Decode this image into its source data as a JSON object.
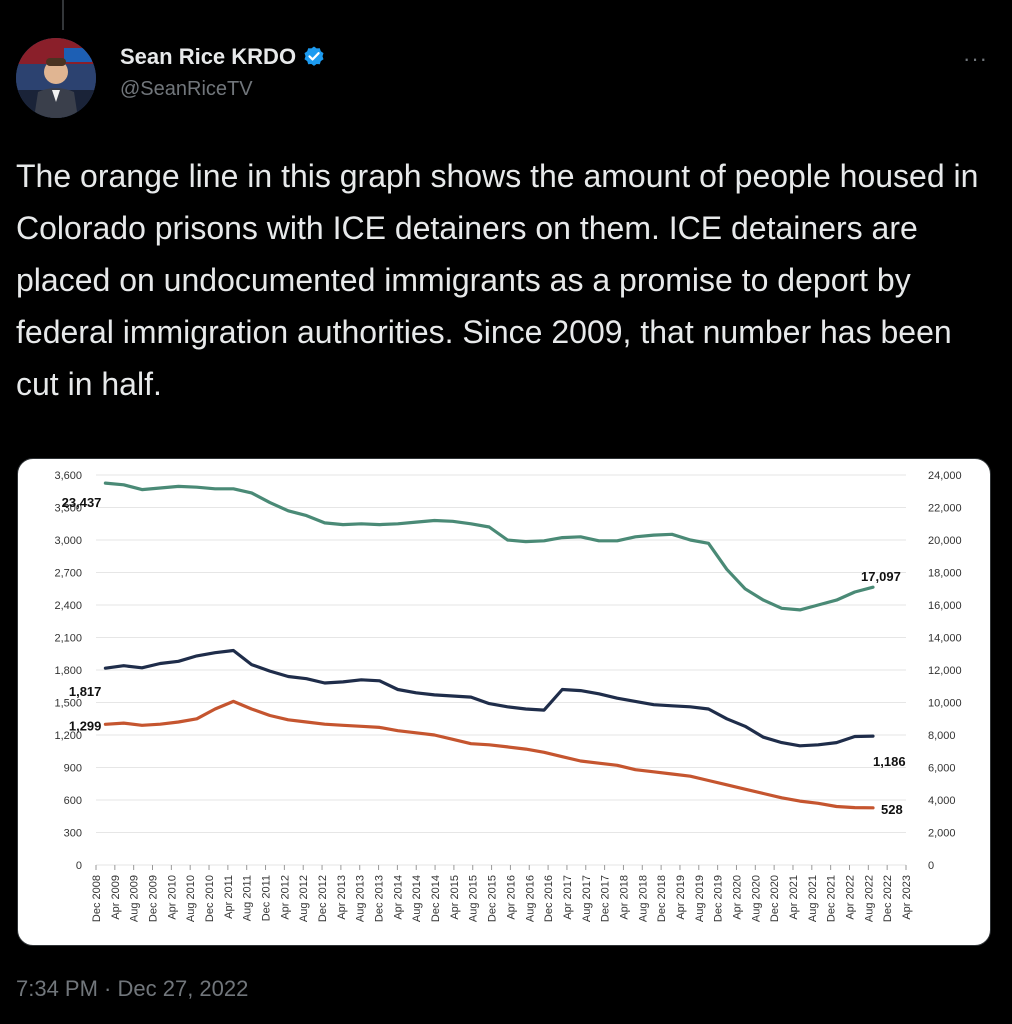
{
  "tweet": {
    "display_name": "Sean Rice KRDO",
    "handle": "@SeanRiceTV",
    "verified_icon": "verified-badge-icon",
    "more_icon": "more-dots-icon",
    "more_label": "···",
    "text": "The orange line in this graph shows the amount of people housed in Colorado prisons with ICE detainers on them. ICE detainers are placed on undocumented immigrants as a promise to deport by federal immigration authorities. Since 2009, that number has been cut in half.",
    "timestamp": "7:34 PM · Dec 27, 2022",
    "accent_color": "#1d9bf0"
  },
  "chart_data": {
    "type": "line",
    "title": "",
    "xlabel": "",
    "ylabel": "",
    "y_left": {
      "ticks": [
        "0",
        "300",
        "600",
        "900",
        "1,200",
        "1,500",
        "1,800",
        "2,100",
        "2,400",
        "2,700",
        "3,000",
        "3,300",
        "3,600"
      ],
      "range": [
        0,
        3600
      ]
    },
    "y_right": {
      "ticks": [
        "0",
        "2,000",
        "4,000",
        "6,000",
        "8,000",
        "10,000",
        "12,000",
        "14,000",
        "16,000",
        "18,000",
        "20,000",
        "22,000",
        "24,000"
      ],
      "range": [
        0,
        24000
      ]
    },
    "x_ticks": [
      "Dec 2008",
      "Apr 2009",
      "Aug 2009",
      "Dec 2009",
      "Apr 2010",
      "Aug 2010",
      "Dec 2010",
      "Apr 2011",
      "Aug 2011",
      "Dec 2011",
      "Apr 2012",
      "Aug 2012",
      "Dec 2012",
      "Apr 2013",
      "Aug 2013",
      "Dec 2013",
      "Apr 2014",
      "Aug 2014",
      "Dec 2014",
      "Apr 2015",
      "Aug 2015",
      "Dec 2015",
      "Apr 2016",
      "Aug 2016",
      "Dec 2016",
      "Apr 2017",
      "Aug 2017",
      "Dec 2017",
      "Apr 2018",
      "Aug 2018",
      "Dec 2018",
      "Apr 2019",
      "Aug 2019",
      "Dec 2019",
      "Apr 2020",
      "Aug 2020",
      "Dec 2020",
      "Apr 2021",
      "Aug 2021",
      "Dec 2021",
      "Apr 2022",
      "Aug 2022",
      "Dec 2022",
      "Apr 2023"
    ],
    "grid": true,
    "legend": "none",
    "series": [
      {
        "axis": "right",
        "color": "#4a8a76",
        "start_label": "23,437",
        "end_label": "17,097",
        "values": [
          23500,
          23400,
          23100,
          23200,
          23300,
          23250,
          23150,
          23150,
          22900,
          22300,
          21800,
          21500,
          21050,
          20950,
          21000,
          20950,
          21000,
          21100,
          21200,
          21150,
          21000,
          20800,
          20000,
          19900,
          19950,
          20150,
          20200,
          19950,
          19950,
          20200,
          20300,
          20350,
          20000,
          19800,
          18200,
          17000,
          16300,
          15800,
          15700,
          16000,
          16300,
          16800,
          17097
        ]
      },
      {
        "axis": "left",
        "color": "#1f2d4a",
        "start_label": "1,817",
        "end_label": "1,186",
        "values": [
          1817,
          1840,
          1820,
          1860,
          1880,
          1930,
          1960,
          1980,
          1850,
          1790,
          1740,
          1720,
          1680,
          1690,
          1710,
          1700,
          1620,
          1590,
          1570,
          1560,
          1550,
          1490,
          1460,
          1440,
          1430,
          1620,
          1610,
          1580,
          1540,
          1510,
          1480,
          1470,
          1460,
          1440,
          1350,
          1280,
          1180,
          1130,
          1100,
          1110,
          1130,
          1186,
          1190
        ]
      },
      {
        "axis": "left",
        "color": "#c5552f",
        "start_label": "1,299",
        "end_label": "528",
        "values": [
          1299,
          1310,
          1290,
          1300,
          1320,
          1350,
          1440,
          1510,
          1440,
          1380,
          1340,
          1320,
          1300,
          1290,
          1280,
          1270,
          1240,
          1220,
          1200,
          1160,
          1120,
          1110,
          1090,
          1070,
          1040,
          1000,
          960,
          940,
          920,
          880,
          860,
          840,
          820,
          780,
          740,
          700,
          660,
          620,
          590,
          570,
          540,
          530,
          528
        ]
      }
    ]
  }
}
